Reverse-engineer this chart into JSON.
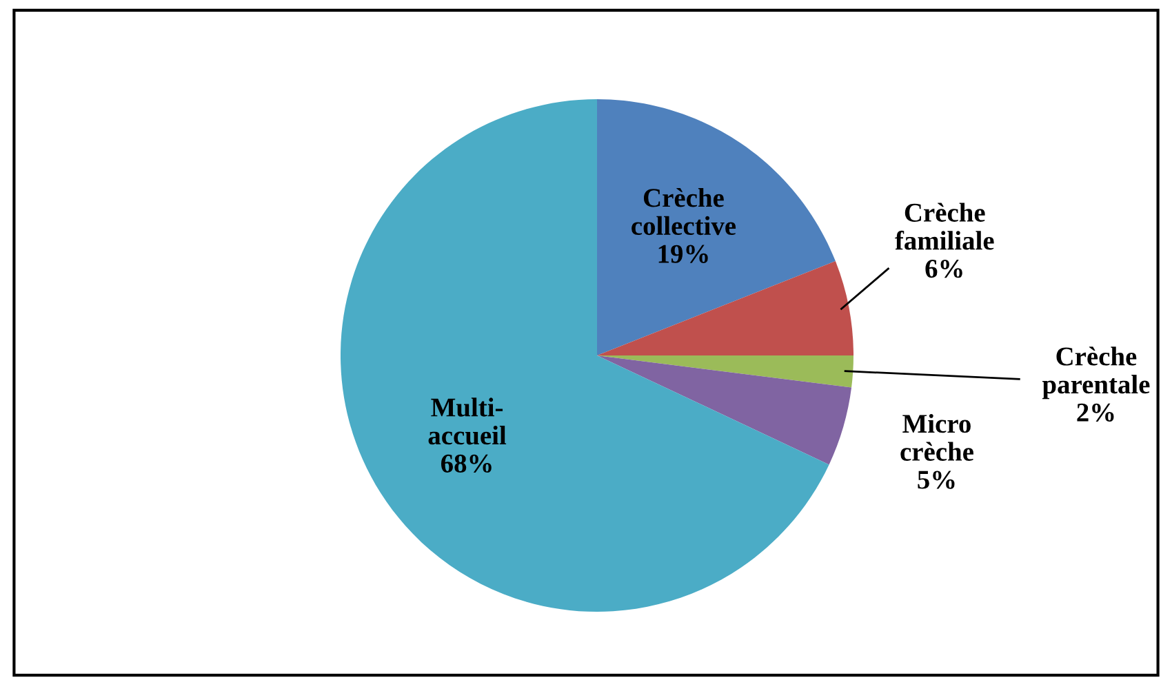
{
  "chart_data": {
    "type": "pie",
    "categories": [
      "Crèche collective",
      "Crèche familiale",
      "Crèche parentale",
      "Micro crèche",
      "Multi-accueil"
    ],
    "values": [
      19,
      6,
      2,
      5,
      68
    ],
    "value_labels": [
      "19%",
      "6%",
      "2%",
      "5%",
      "68%"
    ],
    "colors": [
      "#4f81bd",
      "#c0504d",
      "#9bbb59",
      "#8064a2",
      "#4bacc6"
    ],
    "legend": false
  }
}
